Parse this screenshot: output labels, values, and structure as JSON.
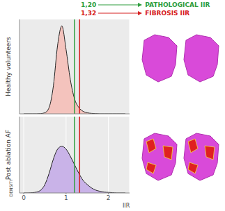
{
  "annotations": [
    {
      "x": 1.2,
      "label": "1,20",
      "text": "PATHOLOGICAL IIR",
      "color": "#2e9e3e"
    },
    {
      "x": 1.32,
      "label": "1,32",
      "text": "FIBROSIS IIR",
      "color": "#d62020"
    }
  ],
  "chart_data": [
    {
      "type": "area",
      "title": "Healthy volunteers",
      "x": [
        0,
        0.1,
        0.2,
        0.3,
        0.4,
        0.5,
        0.6,
        0.7,
        0.8,
        0.9,
        1.0,
        1.1,
        1.2,
        1.3,
        1.4,
        1.5,
        1.6,
        1.7,
        1.8,
        1.9,
        2.0,
        2.1,
        2.2,
        2.3,
        2.4
      ],
      "values": [
        0,
        0,
        0,
        0,
        0.01,
        0.05,
        0.3,
        1.3,
        3.2,
        4.1,
        3.0,
        1.6,
        0.7,
        0.3,
        0.12,
        0.05,
        0.02,
        0.01,
        0,
        0,
        0,
        0,
        0,
        0,
        0
      ],
      "color": "#f4c3bd",
      "xlim": [
        -0.1,
        2.5
      ],
      "xticks": [
        0,
        1,
        2
      ],
      "ylim": [
        0,
        4.4
      ],
      "grid": true,
      "tick_labels": false
    },
    {
      "type": "area",
      "title": "Post ablation AF",
      "x": [
        0,
        0.1,
        0.2,
        0.3,
        0.4,
        0.5,
        0.6,
        0.7,
        0.8,
        0.9,
        1.0,
        1.1,
        1.2,
        1.3,
        1.4,
        1.5,
        1.6,
        1.7,
        1.8,
        1.9,
        2.0,
        2.1,
        2.2,
        2.3,
        2.4
      ],
      "values": [
        0,
        0,
        0.01,
        0.03,
        0.1,
        0.3,
        0.7,
        1.2,
        1.55,
        1.65,
        1.55,
        1.3,
        1.0,
        0.7,
        0.45,
        0.3,
        0.18,
        0.1,
        0.06,
        0.03,
        0.02,
        0.01,
        0,
        0,
        0
      ],
      "color": "#c9b3e8",
      "xlim": [
        -0.1,
        2.5
      ],
      "xticks": [
        0,
        1,
        2
      ],
      "ylim": [
        0,
        2.7
      ],
      "xlabel": "IIR",
      "ylabel": "DENSITY",
      "grid": true,
      "tick_labels": "x"
    }
  ]
}
